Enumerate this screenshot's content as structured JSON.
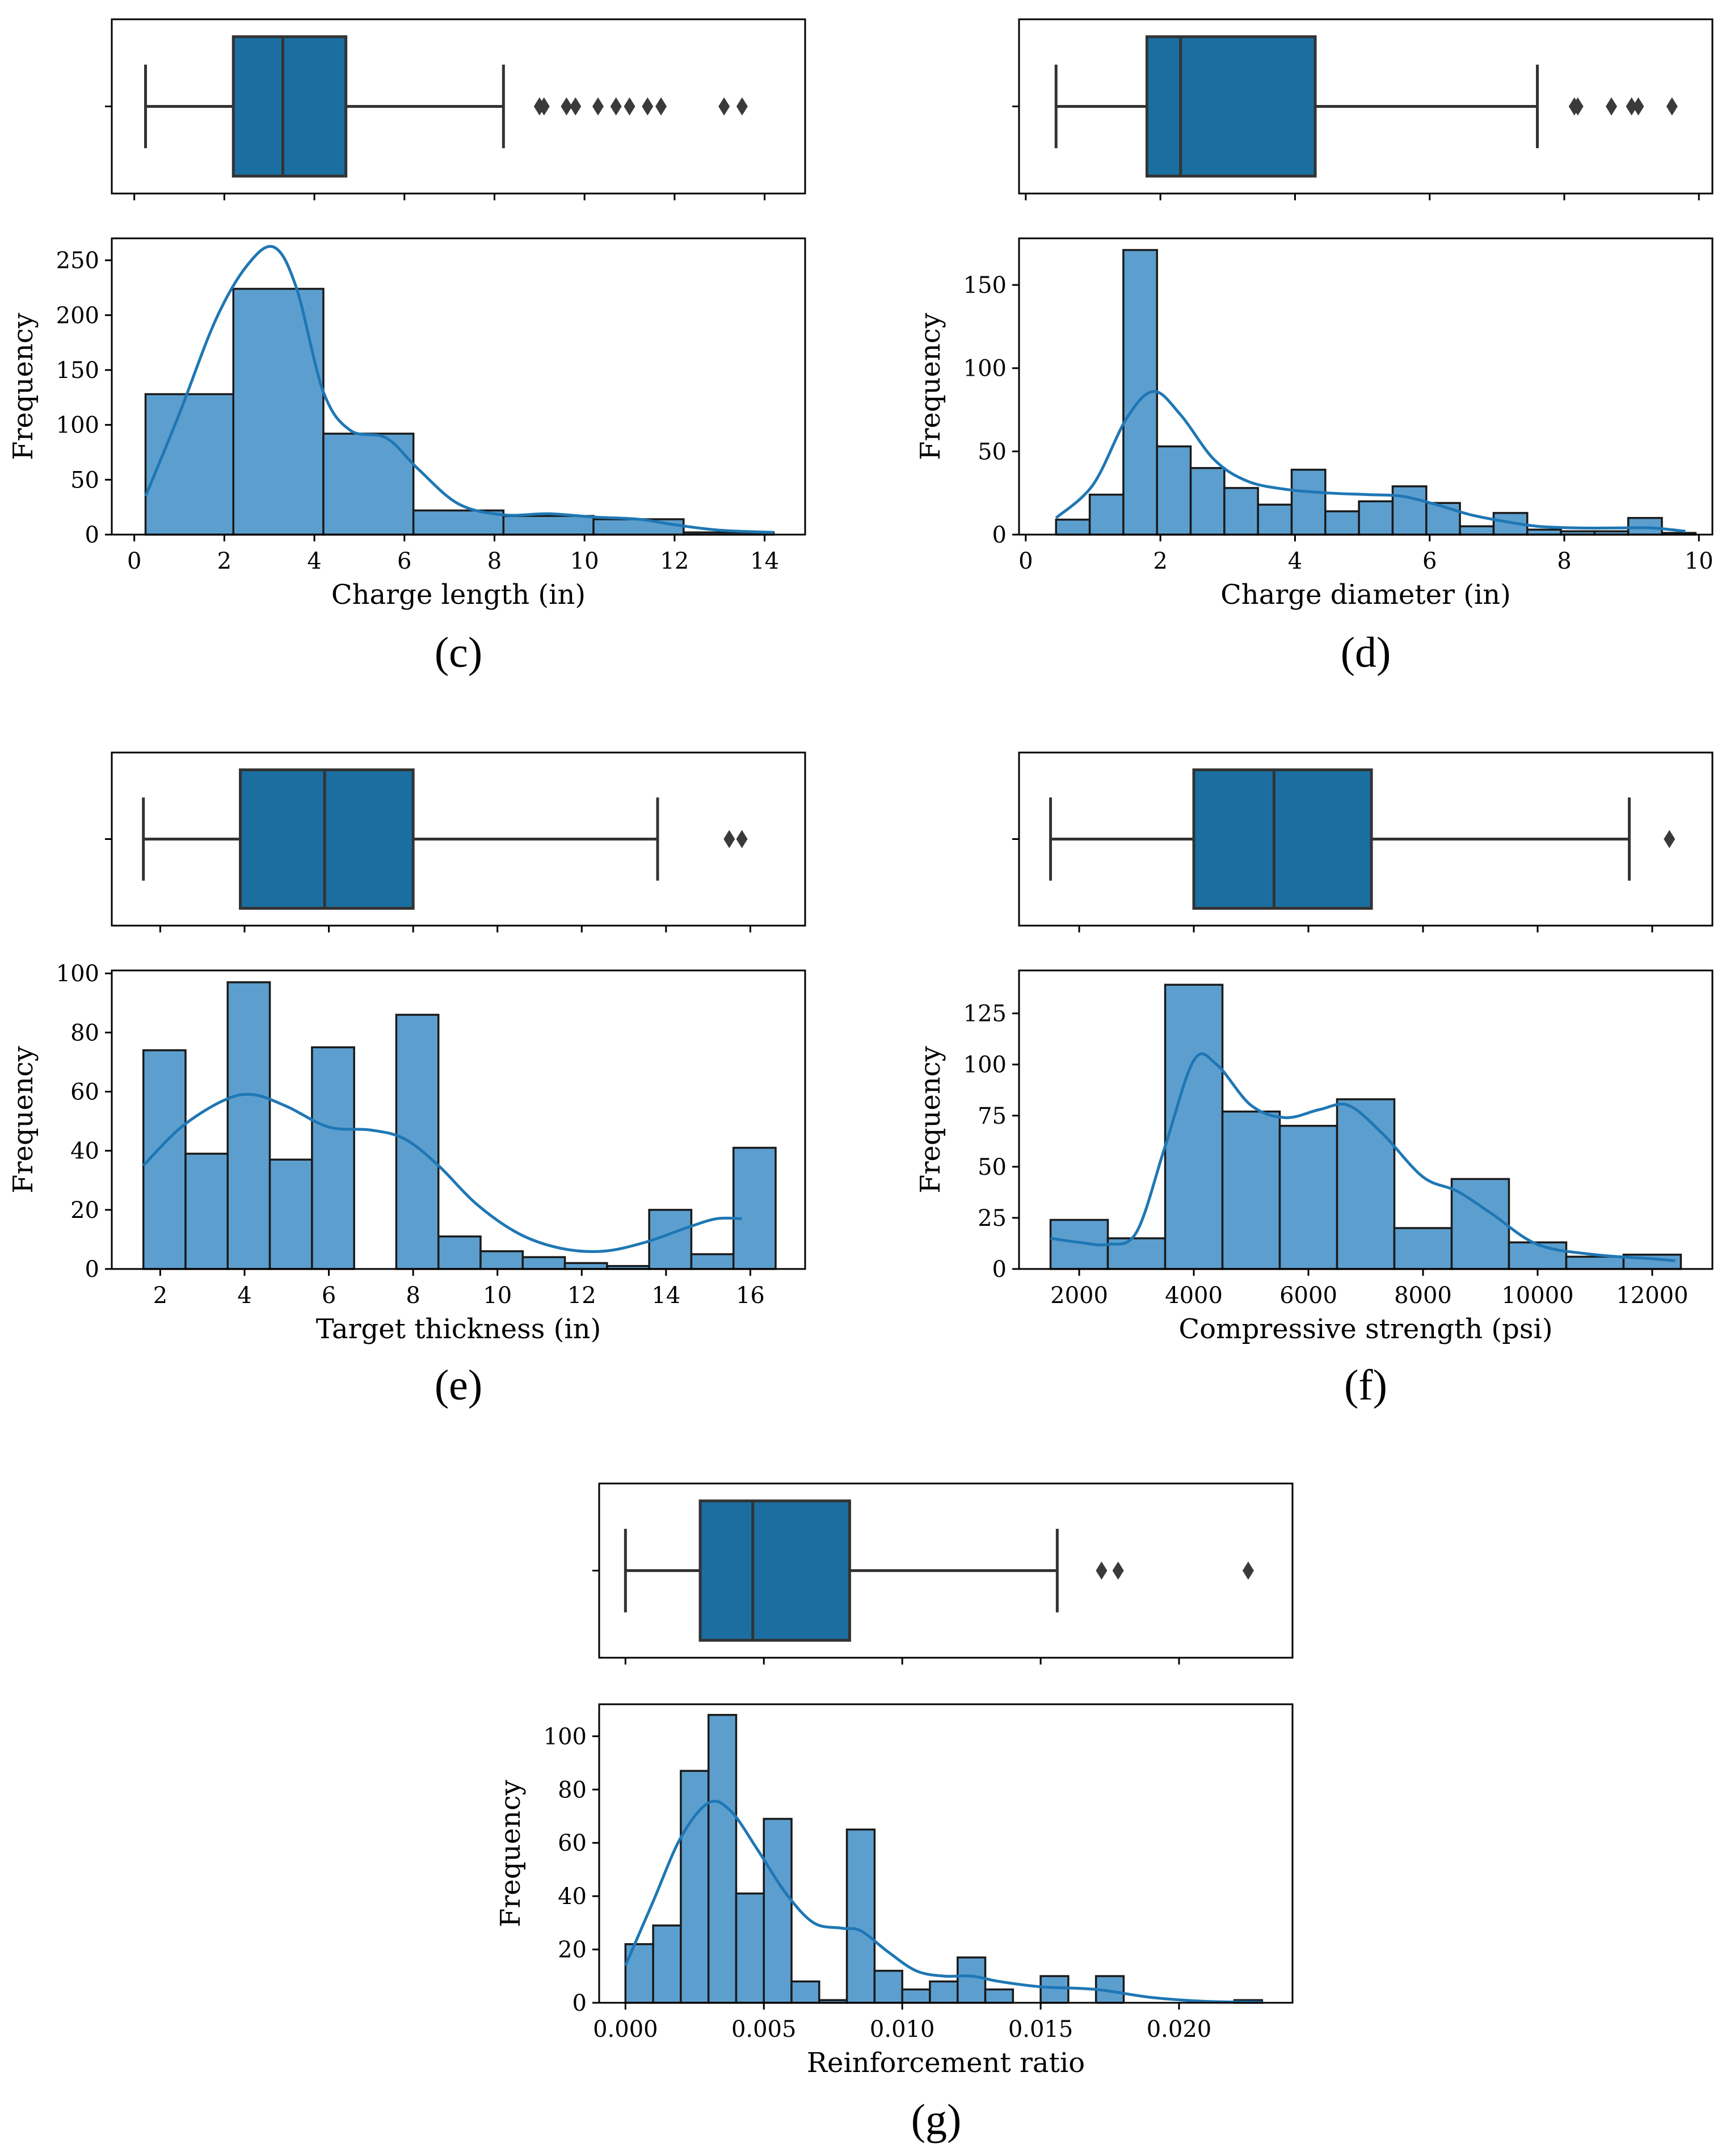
{
  "colors": {
    "box_fill": "#1a6fa0",
    "bar_fill": "#5c9fcf",
    "kde_line": "#1f77b4",
    "edge": "#333333",
    "frame": "#000000"
  },
  "chart_data": [
    {
      "id": "c",
      "caption": "(c)",
      "type": "bar",
      "title": "",
      "xlabel": "Charge length (in)",
      "ylabel": "Frequency",
      "xlim": [
        -0.5,
        14.9
      ],
      "ylim": [
        0,
        270
      ],
      "xticks": [
        0,
        2,
        4,
        6,
        8,
        10,
        12,
        14
      ],
      "xtick_labels": [
        "0",
        "2",
        "4",
        "6",
        "8",
        "10",
        "12",
        "14"
      ],
      "yticks": [
        0,
        50,
        100,
        150,
        200,
        250
      ],
      "ytick_labels": [
        "0",
        "50",
        "100",
        "150",
        "200",
        "250"
      ],
      "bins": [
        {
          "x0": 0.25,
          "x1": 2.2,
          "count": 128
        },
        {
          "x0": 2.2,
          "x1": 4.2,
          "count": 224
        },
        {
          "x0": 4.2,
          "x1": 6.2,
          "count": 92
        },
        {
          "x0": 6.2,
          "x1": 8.2,
          "count": 22
        },
        {
          "x0": 8.2,
          "x1": 10.2,
          "count": 17
        },
        {
          "x0": 10.2,
          "x1": 12.2,
          "count": 14
        },
        {
          "x0": 12.2,
          "x1": 14.2,
          "count": 2
        }
      ],
      "kde": [
        [
          0.25,
          35
        ],
        [
          1,
          110
        ],
        [
          1.8,
          195
        ],
        [
          2.5,
          245
        ],
        [
          3.1,
          262
        ],
        [
          3.6,
          225
        ],
        [
          4.2,
          130
        ],
        [
          4.8,
          95
        ],
        [
          5.6,
          88
        ],
        [
          6.3,
          60
        ],
        [
          7.2,
          28
        ],
        [
          8.2,
          18
        ],
        [
          9.2,
          19
        ],
        [
          10.2,
          16
        ],
        [
          11.2,
          14
        ],
        [
          12,
          9
        ],
        [
          13,
          4
        ],
        [
          14.2,
          2
        ]
      ],
      "box": {
        "whisker_low": 0.25,
        "q1": 2.2,
        "median": 3.3,
        "q3": 4.7,
        "whisker_high": 8.2,
        "outliers": [
          9.0,
          9.1,
          9.6,
          9.8,
          10.3,
          10.7,
          11.0,
          11.4,
          11.7,
          13.1,
          13.5
        ]
      }
    },
    {
      "id": "d",
      "caption": "(d)",
      "type": "bar",
      "title": "",
      "xlabel": "Charge diameter (in)",
      "ylabel": "Frequency",
      "xlim": [
        -0.1,
        10.2
      ],
      "ylim": [
        0,
        178
      ],
      "xticks": [
        0,
        2,
        4,
        6,
        8,
        10
      ],
      "xtick_labels": [
        "0",
        "2",
        "4",
        "6",
        "8",
        "10"
      ],
      "yticks": [
        0,
        50,
        100,
        150
      ],
      "ytick_labels": [
        "0",
        "50",
        "100",
        "150"
      ],
      "bins": [
        {
          "x0": 0.45,
          "x1": 0.95,
          "count": 9
        },
        {
          "x0": 0.95,
          "x1": 1.45,
          "count": 24
        },
        {
          "x0": 1.45,
          "x1": 1.95,
          "count": 171
        },
        {
          "x0": 1.95,
          "x1": 2.45,
          "count": 53
        },
        {
          "x0": 2.45,
          "x1": 2.95,
          "count": 40
        },
        {
          "x0": 2.95,
          "x1": 3.45,
          "count": 28
        },
        {
          "x0": 3.45,
          "x1": 3.95,
          "count": 18
        },
        {
          "x0": 3.95,
          "x1": 4.45,
          "count": 39
        },
        {
          "x0": 4.45,
          "x1": 4.95,
          "count": 14
        },
        {
          "x0": 4.95,
          "x1": 5.45,
          "count": 20
        },
        {
          "x0": 5.45,
          "x1": 5.95,
          "count": 29
        },
        {
          "x0": 5.95,
          "x1": 6.45,
          "count": 19
        },
        {
          "x0": 6.45,
          "x1": 6.95,
          "count": 5
        },
        {
          "x0": 6.95,
          "x1": 7.45,
          "count": 13
        },
        {
          "x0": 7.45,
          "x1": 7.95,
          "count": 3
        },
        {
          "x0": 7.95,
          "x1": 8.45,
          "count": 2
        },
        {
          "x0": 8.45,
          "x1": 8.95,
          "count": 2
        },
        {
          "x0": 8.95,
          "x1": 9.45,
          "count": 10
        },
        {
          "x0": 9.45,
          "x1": 9.95,
          "count": 1
        }
      ],
      "kde": [
        [
          0.45,
          10
        ],
        [
          1,
          30
        ],
        [
          1.5,
          70
        ],
        [
          1.9,
          86
        ],
        [
          2.3,
          72
        ],
        [
          2.8,
          45
        ],
        [
          3.3,
          32
        ],
        [
          3.9,
          27
        ],
        [
          4.5,
          25
        ],
        [
          5.1,
          24
        ],
        [
          5.6,
          23
        ],
        [
          6.1,
          18
        ],
        [
          6.6,
          12
        ],
        [
          7.1,
          8
        ],
        [
          7.6,
          5
        ],
        [
          8.2,
          4
        ],
        [
          8.8,
          4
        ],
        [
          9.3,
          4
        ],
        [
          9.8,
          2
        ]
      ],
      "box": {
        "whisker_low": 0.45,
        "q1": 1.8,
        "median": 2.3,
        "q3": 4.3,
        "whisker_high": 7.6,
        "outliers": [
          8.15,
          8.2,
          8.7,
          9.0,
          9.1,
          9.6
        ]
      }
    },
    {
      "id": "e",
      "caption": "(e)",
      "type": "bar",
      "title": "",
      "xlabel": "Target thickness (in)",
      "ylabel": "Frequency",
      "xlim": [
        0.85,
        17.3
      ],
      "ylim": [
        0,
        101
      ],
      "xticks": [
        2,
        4,
        6,
        8,
        10,
        12,
        14,
        16
      ],
      "xtick_labels": [
        "2",
        "4",
        "6",
        "8",
        "10",
        "12",
        "14",
        "16"
      ],
      "yticks": [
        0,
        20,
        40,
        60,
        80,
        100
      ],
      "ytick_labels": [
        "0",
        "20",
        "40",
        "60",
        "80",
        "100"
      ],
      "bins": [
        {
          "x0": 1.6,
          "x1": 2.6,
          "count": 74
        },
        {
          "x0": 2.6,
          "x1": 3.6,
          "count": 39
        },
        {
          "x0": 3.6,
          "x1": 4.6,
          "count": 97
        },
        {
          "x0": 4.6,
          "x1": 5.6,
          "count": 37
        },
        {
          "x0": 5.6,
          "x1": 6.6,
          "count": 75
        },
        {
          "x0": 6.6,
          "x1": 7.6,
          "count": 0
        },
        {
          "x0": 7.6,
          "x1": 8.6,
          "count": 86
        },
        {
          "x0": 8.6,
          "x1": 9.6,
          "count": 11
        },
        {
          "x0": 9.6,
          "x1": 10.6,
          "count": 6
        },
        {
          "x0": 10.6,
          "x1": 11.6,
          "count": 4
        },
        {
          "x0": 11.6,
          "x1": 12.6,
          "count": 2
        },
        {
          "x0": 12.6,
          "x1": 13.6,
          "count": 1
        },
        {
          "x0": 13.6,
          "x1": 14.6,
          "count": 20
        },
        {
          "x0": 14.6,
          "x1": 15.6,
          "count": 5
        },
        {
          "x0": 15.6,
          "x1": 16.6,
          "count": 41
        }
      ],
      "kde": [
        [
          1.6,
          35
        ],
        [
          2.5,
          48
        ],
        [
          3.5,
          57
        ],
        [
          4.2,
          59
        ],
        [
          5,
          55
        ],
        [
          6,
          48
        ],
        [
          7,
          47
        ],
        [
          7.8,
          44
        ],
        [
          8.6,
          35
        ],
        [
          9.5,
          22
        ],
        [
          10.5,
          12
        ],
        [
          11.5,
          7
        ],
        [
          12.5,
          6
        ],
        [
          13.5,
          9
        ],
        [
          14.5,
          14
        ],
        [
          15.2,
          17
        ],
        [
          15.8,
          17
        ]
      ],
      "box": {
        "whisker_low": 1.6,
        "q1": 3.9,
        "median": 5.9,
        "q3": 8.0,
        "whisker_high": 13.8,
        "outliers": [
          15.5,
          15.8
        ]
      }
    },
    {
      "id": "f",
      "caption": "(f)",
      "type": "bar",
      "title": "",
      "xlabel": "Compressive strength (psi)",
      "ylabel": "Frequency",
      "xlim": [
        950,
        13050
      ],
      "ylim": [
        0,
        146
      ],
      "xticks": [
        2000,
        4000,
        6000,
        8000,
        10000,
        12000
      ],
      "xtick_labels": [
        "2000",
        "4000",
        "6000",
        "8000",
        "10000",
        "12000"
      ],
      "yticks": [
        0,
        25,
        50,
        75,
        100,
        125
      ],
      "ytick_labels": [
        "0",
        "25",
        "50",
        "75",
        "100",
        "125"
      ],
      "bins": [
        {
          "x0": 1500,
          "x1": 2500,
          "count": 24
        },
        {
          "x0": 2500,
          "x1": 3500,
          "count": 15
        },
        {
          "x0": 3500,
          "x1": 4500,
          "count": 139
        },
        {
          "x0": 4500,
          "x1": 5500,
          "count": 77
        },
        {
          "x0": 5500,
          "x1": 6500,
          "count": 70
        },
        {
          "x0": 6500,
          "x1": 7500,
          "count": 83
        },
        {
          "x0": 7500,
          "x1": 8500,
          "count": 20
        },
        {
          "x0": 8500,
          "x1": 9500,
          "count": 44
        },
        {
          "x0": 9500,
          "x1": 10500,
          "count": 13
        },
        {
          "x0": 10500,
          "x1": 11500,
          "count": 6
        },
        {
          "x0": 11500,
          "x1": 12500,
          "count": 7
        }
      ],
      "kde": [
        [
          1500,
          15
        ],
        [
          2000,
          13
        ],
        [
          2500,
          12
        ],
        [
          3000,
          18
        ],
        [
          3500,
          60
        ],
        [
          4000,
          102
        ],
        [
          4400,
          100
        ],
        [
          5000,
          80
        ],
        [
          5600,
          74
        ],
        [
          6200,
          78
        ],
        [
          6700,
          80
        ],
        [
          7300,
          66
        ],
        [
          8000,
          45
        ],
        [
          8600,
          38
        ],
        [
          9200,
          27
        ],
        [
          10000,
          12
        ],
        [
          11000,
          7
        ],
        [
          12000,
          5
        ],
        [
          12400,
          4
        ]
      ],
      "box": {
        "whisker_low": 1500,
        "q1": 4000,
        "median": 5400,
        "q3": 7100,
        "whisker_high": 11600,
        "outliers": [
          12300
        ]
      }
    },
    {
      "id": "g",
      "caption": "(g)",
      "type": "bar",
      "title": "",
      "xlabel": "Reinforcement ratio",
      "ylabel": "Frequency",
      "xlim": [
        -0.00095,
        0.0241
      ],
      "ylim": [
        0,
        112
      ],
      "xticks": [
        0.0,
        0.005,
        0.01,
        0.015,
        0.02
      ],
      "xtick_labels": [
        "0.000",
        "0.005",
        "0.010",
        "0.015",
        "0.020"
      ],
      "yticks": [
        0,
        20,
        40,
        60,
        80,
        100
      ],
      "ytick_labels": [
        "0",
        "20",
        "40",
        "60",
        "80",
        "100"
      ],
      "bins": [
        {
          "x0": 0.0,
          "x1": 0.001,
          "count": 22
        },
        {
          "x0": 0.001,
          "x1": 0.002,
          "count": 29
        },
        {
          "x0": 0.002,
          "x1": 0.003,
          "count": 87
        },
        {
          "x0": 0.003,
          "x1": 0.004,
          "count": 108
        },
        {
          "x0": 0.004,
          "x1": 0.005,
          "count": 41
        },
        {
          "x0": 0.005,
          "x1": 0.006,
          "count": 69
        },
        {
          "x0": 0.006,
          "x1": 0.007,
          "count": 8
        },
        {
          "x0": 0.007,
          "x1": 0.008,
          "count": 1
        },
        {
          "x0": 0.008,
          "x1": 0.009,
          "count": 65
        },
        {
          "x0": 0.009,
          "x1": 0.01,
          "count": 12
        },
        {
          "x0": 0.01,
          "x1": 0.011,
          "count": 5
        },
        {
          "x0": 0.011,
          "x1": 0.012,
          "count": 8
        },
        {
          "x0": 0.012,
          "x1": 0.013,
          "count": 17
        },
        {
          "x0": 0.013,
          "x1": 0.014,
          "count": 5
        },
        {
          "x0": 0.014,
          "x1": 0.015,
          "count": 0
        },
        {
          "x0": 0.015,
          "x1": 0.016,
          "count": 10
        },
        {
          "x0": 0.016,
          "x1": 0.017,
          "count": 0
        },
        {
          "x0": 0.017,
          "x1": 0.018,
          "count": 10
        },
        {
          "x0": 0.018,
          "x1": 0.019,
          "count": 0
        },
        {
          "x0": 0.019,
          "x1": 0.02,
          "count": 0
        },
        {
          "x0": 0.02,
          "x1": 0.021,
          "count": 0
        },
        {
          "x0": 0.021,
          "x1": 0.022,
          "count": 0
        },
        {
          "x0": 0.022,
          "x1": 0.023,
          "count": 1
        }
      ],
      "kde": [
        [
          0.0,
          14
        ],
        [
          0.001,
          38
        ],
        [
          0.002,
          62
        ],
        [
          0.003,
          75
        ],
        [
          0.0038,
          72
        ],
        [
          0.0048,
          57
        ],
        [
          0.0058,
          41
        ],
        [
          0.0068,
          30
        ],
        [
          0.0078,
          28
        ],
        [
          0.0085,
          27
        ],
        [
          0.0095,
          19
        ],
        [
          0.0105,
          12
        ],
        [
          0.0115,
          10
        ],
        [
          0.0125,
          10
        ],
        [
          0.0135,
          8
        ],
        [
          0.015,
          6
        ],
        [
          0.017,
          5
        ],
        [
          0.019,
          2
        ],
        [
          0.021,
          0.5
        ],
        [
          0.023,
          0.2
        ]
      ],
      "box": {
        "whisker_low": 0.0,
        "q1": 0.0027,
        "median": 0.0046,
        "q3": 0.0081,
        "whisker_high": 0.0156,
        "outliers": [
          0.0172,
          0.0178,
          0.0225
        ]
      }
    }
  ]
}
